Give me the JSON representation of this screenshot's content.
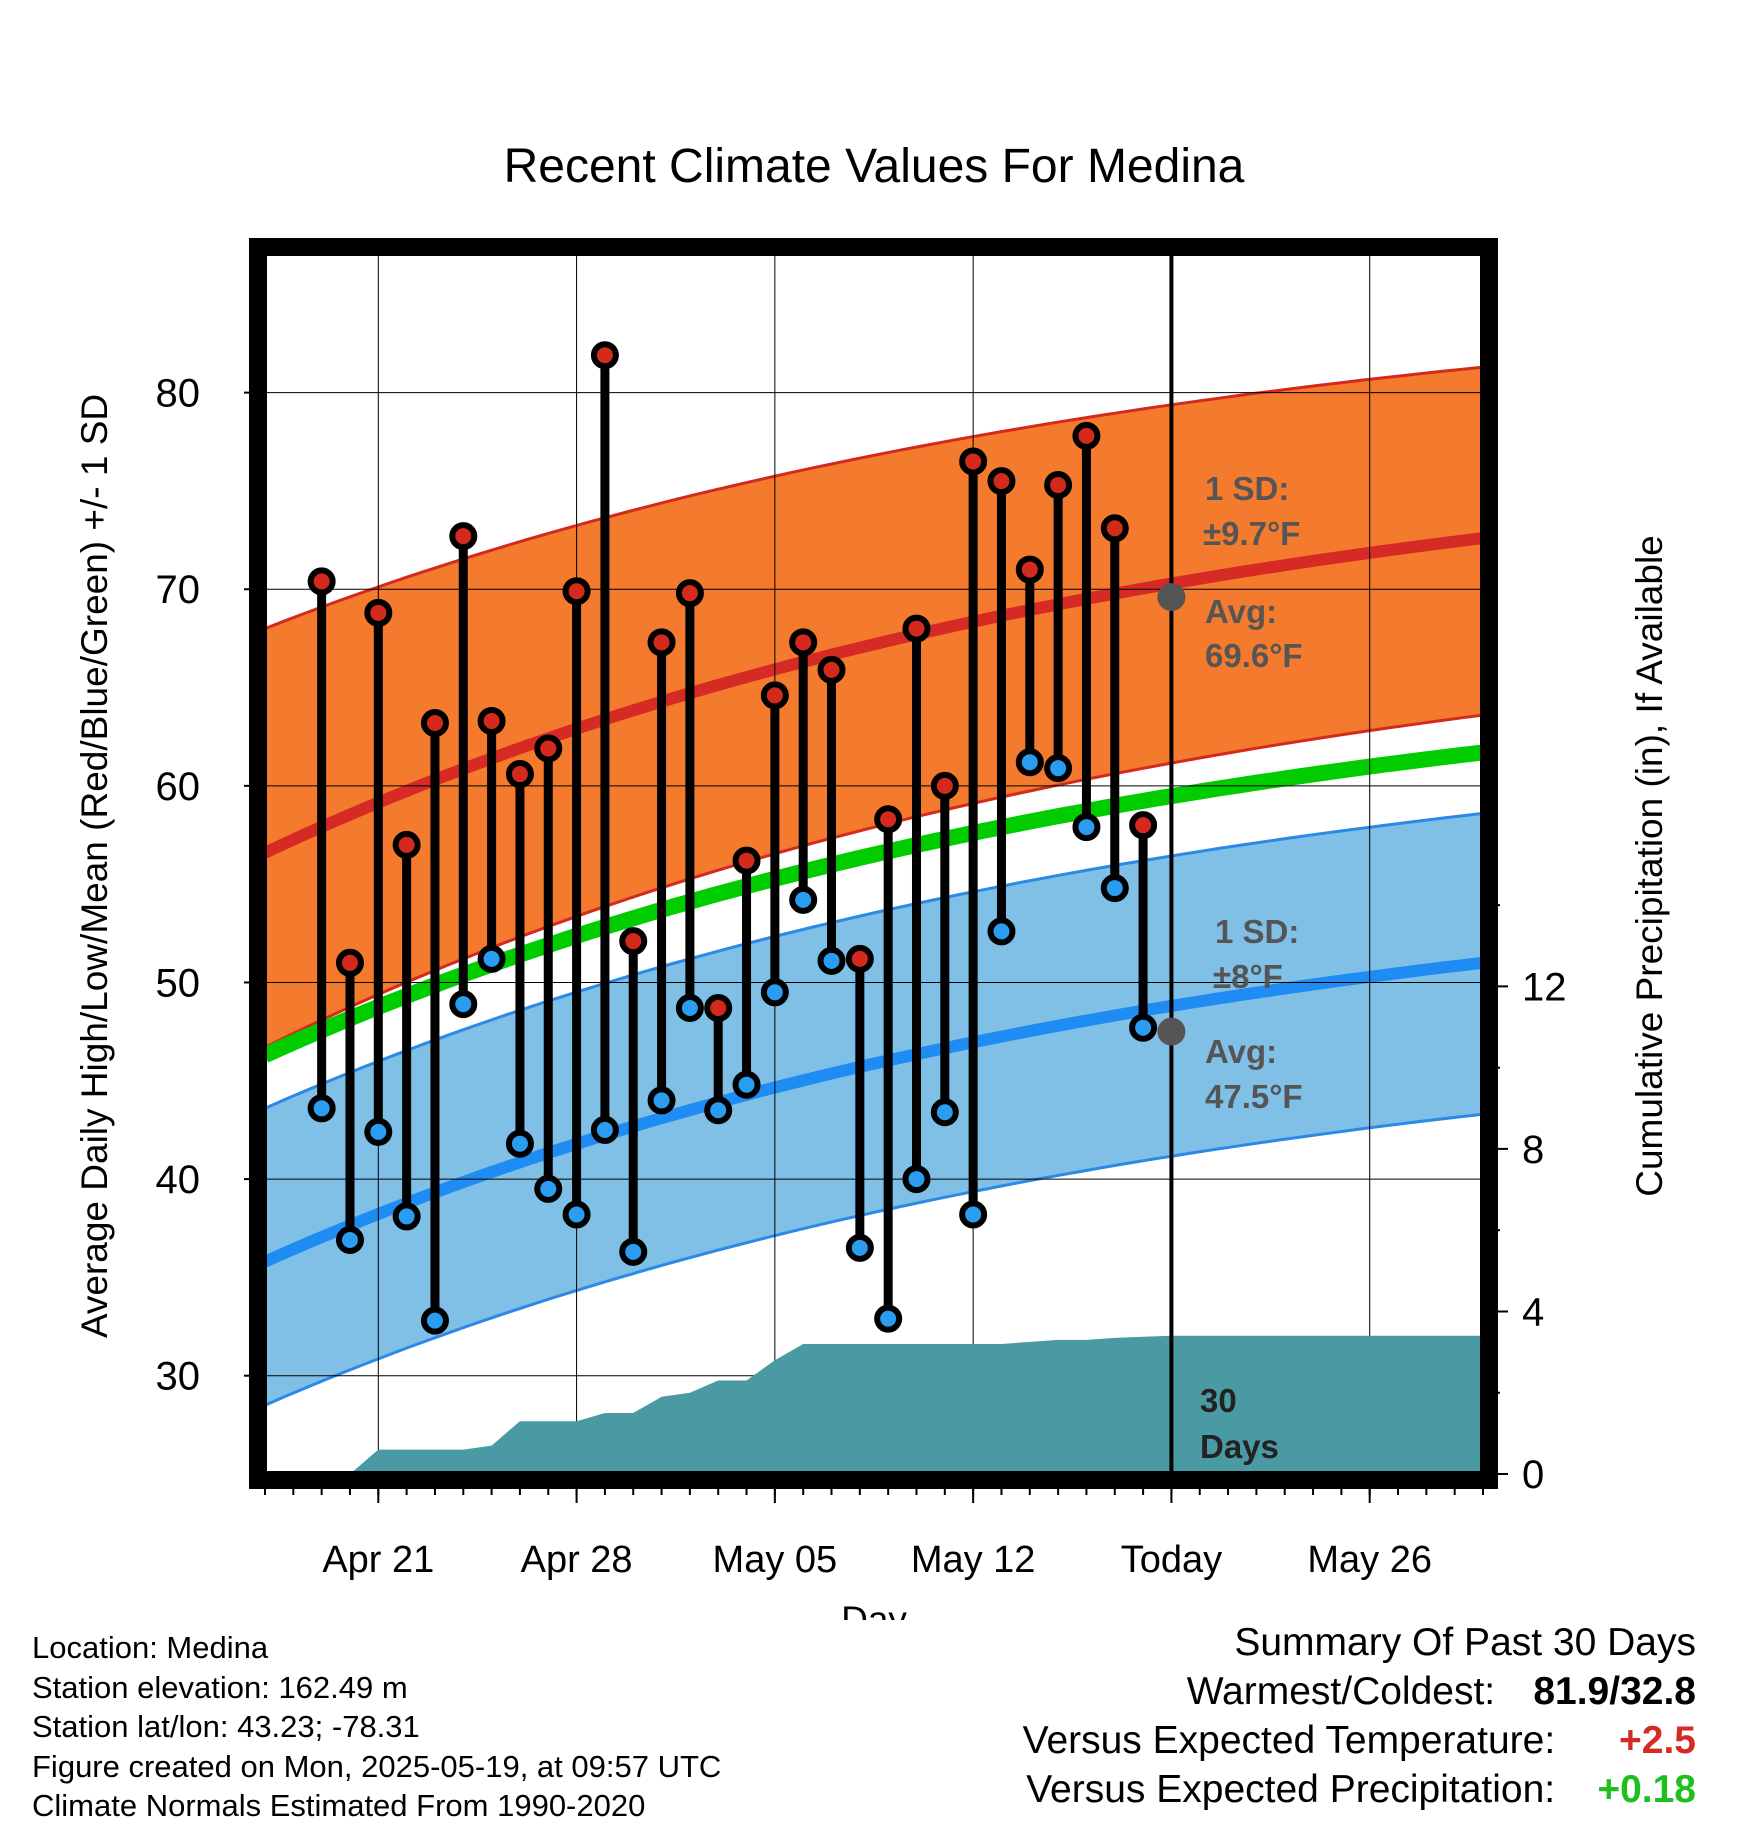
{
  "chart_data": {
    "type": "line",
    "title": "Recent Climate Values For Medina",
    "xlabel": "Day",
    "ylabel": "Average Daily High/Low/Mean (Red/Blue/Green) +/- 1 SD",
    "y2label": "Cumulative Precipitation (in), If Available",
    "ylim": [
      25,
      87
    ],
    "y2lim": [
      0,
      30
    ],
    "yticks": [
      30,
      40,
      50,
      60,
      70,
      80
    ],
    "y2ticks": [
      0,
      4,
      8,
      12
    ],
    "xlim": [
      "2025-04-17",
      "2025-05-30"
    ],
    "xticks": [
      {
        "date": "2025-04-21",
        "label": "Apr 21"
      },
      {
        "date": "2025-04-28",
        "label": "Apr 28"
      },
      {
        "date": "2025-05-05",
        "label": "May 05"
      },
      {
        "date": "2025-05-12",
        "label": "May 12"
      },
      {
        "date": "2025-05-19",
        "label": "Today"
      },
      {
        "date": "2025-05-26",
        "label": "May 26"
      }
    ],
    "today": "2025-05-19",
    "days": [
      "2025-04-19",
      "2025-04-20",
      "2025-04-21",
      "2025-04-22",
      "2025-04-23",
      "2025-04-24",
      "2025-04-25",
      "2025-04-26",
      "2025-04-27",
      "2025-04-28",
      "2025-04-29",
      "2025-04-30",
      "2025-05-01",
      "2025-05-02",
      "2025-05-03",
      "2025-05-04",
      "2025-05-05",
      "2025-05-06",
      "2025-05-07",
      "2025-05-08",
      "2025-05-09",
      "2025-05-10",
      "2025-05-11",
      "2025-05-12",
      "2025-05-13",
      "2025-05-14",
      "2025-05-15",
      "2025-05-16",
      "2025-05-17",
      "2025-05-18"
    ],
    "highs": [
      70.4,
      51.0,
      68.8,
      57.0,
      63.2,
      72.7,
      63.3,
      60.6,
      61.9,
      69.9,
      81.9,
      52.1,
      67.3,
      69.8,
      48.7,
      56.2,
      64.6,
      67.3,
      65.9,
      51.2,
      58.3,
      68.0,
      60.0,
      76.5,
      75.5,
      71.0,
      75.3,
      77.8,
      73.1,
      58.0
    ],
    "lows": [
      43.6,
      36.9,
      42.4,
      38.1,
      32.8,
      48.9,
      51.2,
      41.8,
      39.5,
      38.2,
      42.5,
      36.3,
      44.0,
      48.7,
      43.5,
      44.8,
      49.5,
      54.2,
      51.1,
      36.5,
      32.9,
      40.0,
      43.4,
      38.2,
      52.6,
      61.2,
      60.9,
      57.9,
      54.8,
      47.7
    ],
    "normals": {
      "start": "2025-04-17",
      "end": "2025-05-30",
      "high_mean": [
        56.6,
        72.6
      ],
      "high_sd_upper": [
        68.0,
        81.3
      ],
      "high_sd_lower": [
        46.7,
        63.6
      ],
      "low_mean": [
        35.8,
        51.0
      ],
      "low_sd_upper": [
        43.6,
        58.6
      ],
      "low_sd_lower": [
        28.5,
        43.3
      ],
      "mean": [
        46.3,
        61.7
      ]
    },
    "precip_cumulative": {
      "days": [
        "2025-04-19",
        "2025-04-20",
        "2025-04-21",
        "2025-04-22",
        "2025-04-23",
        "2025-04-24",
        "2025-04-25",
        "2025-04-26",
        "2025-04-27",
        "2025-04-28",
        "2025-04-29",
        "2025-04-30",
        "2025-05-01",
        "2025-05-02",
        "2025-05-03",
        "2025-05-04",
        "2025-05-05",
        "2025-05-06",
        "2025-05-07",
        "2025-05-08",
        "2025-05-09",
        "2025-05-10",
        "2025-05-11",
        "2025-05-12",
        "2025-05-13",
        "2025-05-14",
        "2025-05-15",
        "2025-05-16",
        "2025-05-17",
        "2025-05-18",
        "2025-05-19",
        "2025-05-30"
      ],
      "values": [
        0.0,
        0.0,
        0.6,
        0.6,
        0.6,
        0.6,
        0.7,
        1.3,
        1.3,
        1.3,
        1.5,
        1.5,
        1.9,
        2.0,
        2.3,
        2.3,
        2.8,
        3.2,
        3.2,
        3.2,
        3.2,
        3.2,
        3.2,
        3.2,
        3.2,
        3.25,
        3.3,
        3.3,
        3.35,
        3.38,
        3.4,
        3.4
      ]
    },
    "annotations": {
      "high_sd_label": "1 SD:",
      "high_sd_value": "±9.7°F",
      "high_avg_label": "Avg:",
      "high_avg_value": "69.6°F",
      "high_avg": 69.6,
      "low_sd_label": "1 SD:",
      "low_sd_value": "±8°F",
      "low_avg_label": "Avg:",
      "low_avg_value": "47.5°F",
      "low_avg": 47.5,
      "period_line1": "30",
      "period_line2": "Days"
    },
    "colors": {
      "high_band": "#f47a2e",
      "high_band_edge": "#d42a1e",
      "high_mean": "#d62a24",
      "low_band": "#80bfe6",
      "low_band_edge": "#2a8ae6",
      "low_mean": "#1e8cf2",
      "mean": "#00cc00",
      "precip": "#499aa3",
      "high_marker": "#d42a1e",
      "low_marker": "#2a9df0",
      "annotation": "#555555"
    }
  },
  "footer": {
    "location": "Location: Medina",
    "elevation": "Station elevation: 162.49 m",
    "latlon": "Station lat/lon: 43.23; -78.31",
    "created": "Figure created on Mon, 2025-05-19, at 09:57 UTC",
    "normals": "Climate Normals Estimated From 1990-2020"
  },
  "summary": {
    "title": "Summary Of Past 30 Days",
    "warmest_coldest_label": "Warmest/Coldest:",
    "warmest_coldest_value": "81.9/32.8",
    "temp_label": "Versus Expected Temperature:",
    "temp_value": "+2.5",
    "temp_color": "#d62a24",
    "precip_label": "Versus Expected Precipitation:",
    "precip_value": "+0.18",
    "precip_color": "#1fbf1f"
  }
}
